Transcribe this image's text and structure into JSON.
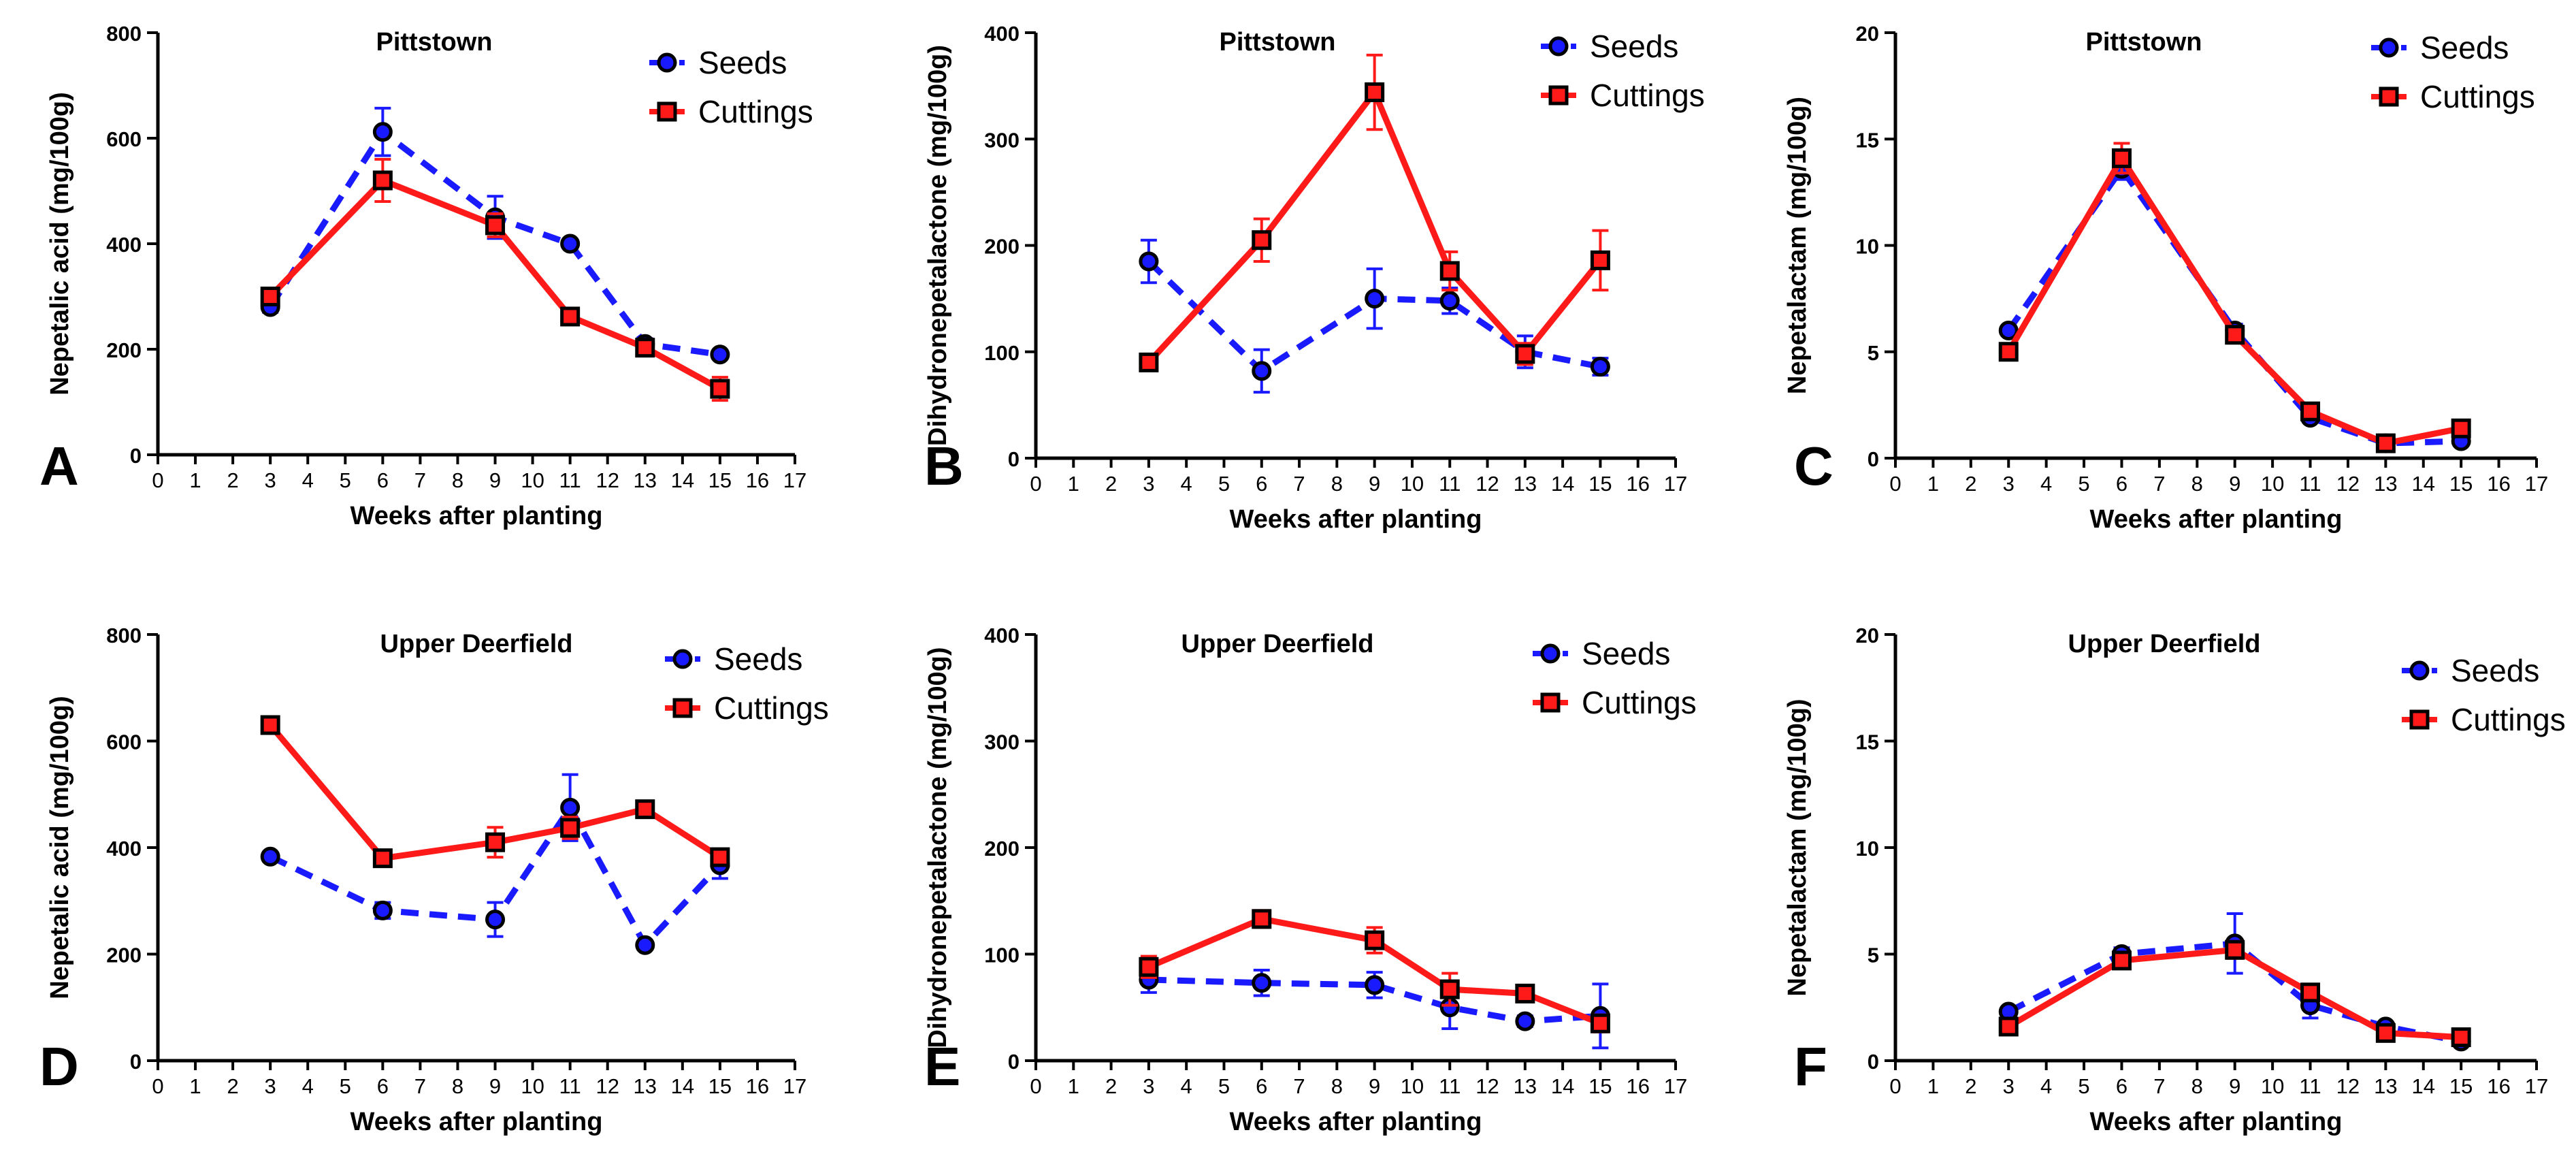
{
  "chart_data": [
    {
      "panel_letter": "A",
      "type": "line",
      "title": "Pittstown",
      "xlabel": "Weeks after planting",
      "ylabel": "Nepetalic acid (mg/100g)",
      "xlim": [
        0,
        17
      ],
      "ylim": [
        0,
        800
      ],
      "x_ticks": [
        "0",
        "1",
        "2",
        "3",
        "4",
        "5",
        "6",
        "7",
        "8",
        "9",
        "10",
        "11",
        "12",
        "13",
        "14",
        "15",
        "16",
        "17"
      ],
      "y_ticks": [
        "0",
        "200",
        "400",
        "600",
        "800"
      ],
      "legend_position": "top-right",
      "series": [
        {
          "name": "Seeds",
          "style": "dashed",
          "marker": "circle",
          "color": "#1a1aff",
          "x": [
            3,
            6,
            9,
            11,
            13,
            15
          ],
          "y": [
            280,
            612,
            450,
            400,
            210,
            190
          ],
          "err": [
            10,
            45,
            40,
            8,
            10,
            8
          ]
        },
        {
          "name": "Cuttings",
          "style": "solid",
          "marker": "square",
          "color": "#ff1a1a",
          "x": [
            3,
            6,
            9,
            11,
            13,
            15
          ],
          "y": [
            300,
            520,
            435,
            262,
            203,
            125
          ],
          "err": [
            12,
            40,
            22,
            12,
            10,
            22
          ]
        }
      ]
    },
    {
      "panel_letter": "B",
      "type": "line",
      "title": "Pittstown",
      "xlabel": "Weeks after planting",
      "ylabel": "Dihydronepetalactone (mg/100g)",
      "xlim": [
        0,
        17
      ],
      "ylim": [
        0,
        400
      ],
      "x_ticks": [
        "0",
        "1",
        "2",
        "3",
        "4",
        "5",
        "6",
        "7",
        "8",
        "9",
        "10",
        "11",
        "12",
        "13",
        "14",
        "15",
        "16",
        "17"
      ],
      "y_ticks": [
        "0",
        "100",
        "200",
        "300",
        "400"
      ],
      "legend_position": "top-right",
      "series": [
        {
          "name": "Seeds",
          "style": "dashed",
          "marker": "circle",
          "color": "#1a1aff",
          "x": [
            3,
            6,
            9,
            11,
            13,
            15
          ],
          "y": [
            185,
            82,
            150,
            148,
            100,
            86
          ],
          "err": [
            20,
            20,
            28,
            12,
            15,
            8
          ]
        },
        {
          "name": "Cuttings",
          "style": "solid",
          "marker": "square",
          "color": "#ff1a1a",
          "x": [
            3,
            6,
            9,
            11,
            13,
            15
          ],
          "y": [
            90,
            205,
            344,
            176,
            98,
            186
          ],
          "err": [
            5,
            20,
            35,
            18,
            10,
            28
          ]
        }
      ]
    },
    {
      "panel_letter": "C",
      "type": "line",
      "title": "Pittstown",
      "xlabel": "Weeks after planting",
      "ylabel": "Nepetalactam (mg/100g)",
      "xlim": [
        0,
        17
      ],
      "ylim": [
        0,
        20
      ],
      "x_ticks": [
        "0",
        "1",
        "2",
        "3",
        "4",
        "5",
        "6",
        "7",
        "8",
        "9",
        "10",
        "11",
        "12",
        "13",
        "14",
        "15",
        "16",
        "17"
      ],
      "y_ticks": [
        "0",
        "5",
        "10",
        "15",
        "20"
      ],
      "legend_position": "top-right",
      "series": [
        {
          "name": "Seeds",
          "style": "dashed",
          "marker": "circle",
          "color": "#1a1aff",
          "x": [
            3,
            6,
            9,
            11,
            13,
            15
          ],
          "y": [
            6.0,
            13.6,
            6.0,
            1.9,
            0.7,
            0.8
          ],
          "err": [
            0.2,
            0.5,
            0.3,
            0.2,
            0.1,
            0.1
          ]
        },
        {
          "name": "Cuttings",
          "style": "solid",
          "marker": "square",
          "color": "#ff1a1a",
          "x": [
            3,
            6,
            9,
            11,
            13,
            15
          ],
          "y": [
            5.0,
            14.1,
            5.8,
            2.2,
            0.7,
            1.4
          ],
          "err": [
            0.2,
            0.7,
            0.3,
            0.2,
            0.1,
            0.2
          ]
        }
      ]
    },
    {
      "panel_letter": "D",
      "type": "line",
      "title": "Upper Deerfield",
      "xlabel": "Weeks after planting",
      "ylabel": "Nepetalic acid (mg/100g)",
      "xlim": [
        0,
        17
      ],
      "ylim": [
        0,
        800
      ],
      "x_ticks": [
        "0",
        "1",
        "2",
        "3",
        "4",
        "5",
        "6",
        "7",
        "8",
        "9",
        "10",
        "11",
        "12",
        "13",
        "14",
        "15",
        "16",
        "17"
      ],
      "y_ticks": [
        "0",
        "200",
        "400",
        "600",
        "800"
      ],
      "legend_position": "top-right",
      "series": [
        {
          "name": "Seeds",
          "style": "dashed",
          "marker": "circle",
          "color": "#1a1aff",
          "x": [
            3,
            6,
            9,
            11,
            13,
            15
          ],
          "y": [
            383,
            282,
            265,
            475,
            217,
            367
          ],
          "err": [
            8,
            15,
            32,
            62,
            8,
            25
          ]
        },
        {
          "name": "Cuttings",
          "style": "solid",
          "marker": "square",
          "color": "#ff1a1a",
          "x": [
            3,
            6,
            9,
            11,
            13,
            15
          ],
          "y": [
            630,
            380,
            410,
            437,
            472,
            382
          ],
          "err": [
            10,
            15,
            28,
            20,
            10,
            12
          ]
        }
      ]
    },
    {
      "panel_letter": "E",
      "type": "line",
      "title": "Upper Deerfield",
      "xlabel": "Weeks after planting",
      "ylabel": "Dihydronepetalactone (mg/100g)",
      "xlim": [
        0,
        17
      ],
      "ylim": [
        0,
        400
      ],
      "x_ticks": [
        "0",
        "1",
        "2",
        "3",
        "4",
        "5",
        "6",
        "7",
        "8",
        "9",
        "10",
        "11",
        "12",
        "13",
        "14",
        "15",
        "16",
        "17"
      ],
      "y_ticks": [
        "0",
        "100",
        "200",
        "300",
        "400"
      ],
      "legend_position": "top-right",
      "series": [
        {
          "name": "Seeds",
          "style": "dashed",
          "marker": "circle",
          "color": "#1a1aff",
          "x": [
            3,
            6,
            9,
            11,
            13,
            15
          ],
          "y": [
            76,
            73,
            71,
            50,
            37,
            42
          ],
          "err": [
            12,
            12,
            12,
            20,
            5,
            30
          ]
        },
        {
          "name": "Cuttings",
          "style": "solid",
          "marker": "square",
          "color": "#ff1a1a",
          "x": [
            3,
            6,
            9,
            11,
            13,
            15
          ],
          "y": [
            88,
            133,
            113,
            67,
            63,
            35
          ],
          "err": [
            10,
            8,
            12,
            15,
            5,
            8
          ]
        }
      ]
    },
    {
      "panel_letter": "F",
      "type": "line",
      "title": "Upper Deerfield",
      "xlabel": "Weeks after planting",
      "ylabel": "Nepetalactam (mg/100g)",
      "xlim": [
        0,
        17
      ],
      "ylim": [
        0,
        20
      ],
      "x_ticks": [
        "0",
        "1",
        "2",
        "3",
        "4",
        "5",
        "6",
        "7",
        "8",
        "9",
        "10",
        "11",
        "12",
        "13",
        "14",
        "15",
        "16",
        "17"
      ],
      "y_ticks": [
        "0",
        "5",
        "10",
        "15",
        "20"
      ],
      "legend_position": "top-right",
      "series": [
        {
          "name": "Seeds",
          "style": "dashed",
          "marker": "circle",
          "color": "#1a1aff",
          "x": [
            3,
            6,
            9,
            11,
            13,
            15
          ],
          "y": [
            2.3,
            5.0,
            5.5,
            2.6,
            1.6,
            0.9
          ],
          "err": [
            0.2,
            0.3,
            1.4,
            0.6,
            0.2,
            0.1
          ]
        },
        {
          "name": "Cuttings",
          "style": "solid",
          "marker": "square",
          "color": "#ff1a1a",
          "x": [
            3,
            6,
            9,
            11,
            13,
            15
          ],
          "y": [
            1.6,
            4.7,
            5.2,
            3.2,
            1.3,
            1.1
          ],
          "err": [
            0.2,
            0.3,
            0.4,
            0.3,
            0.2,
            0.1
          ]
        }
      ]
    }
  ]
}
